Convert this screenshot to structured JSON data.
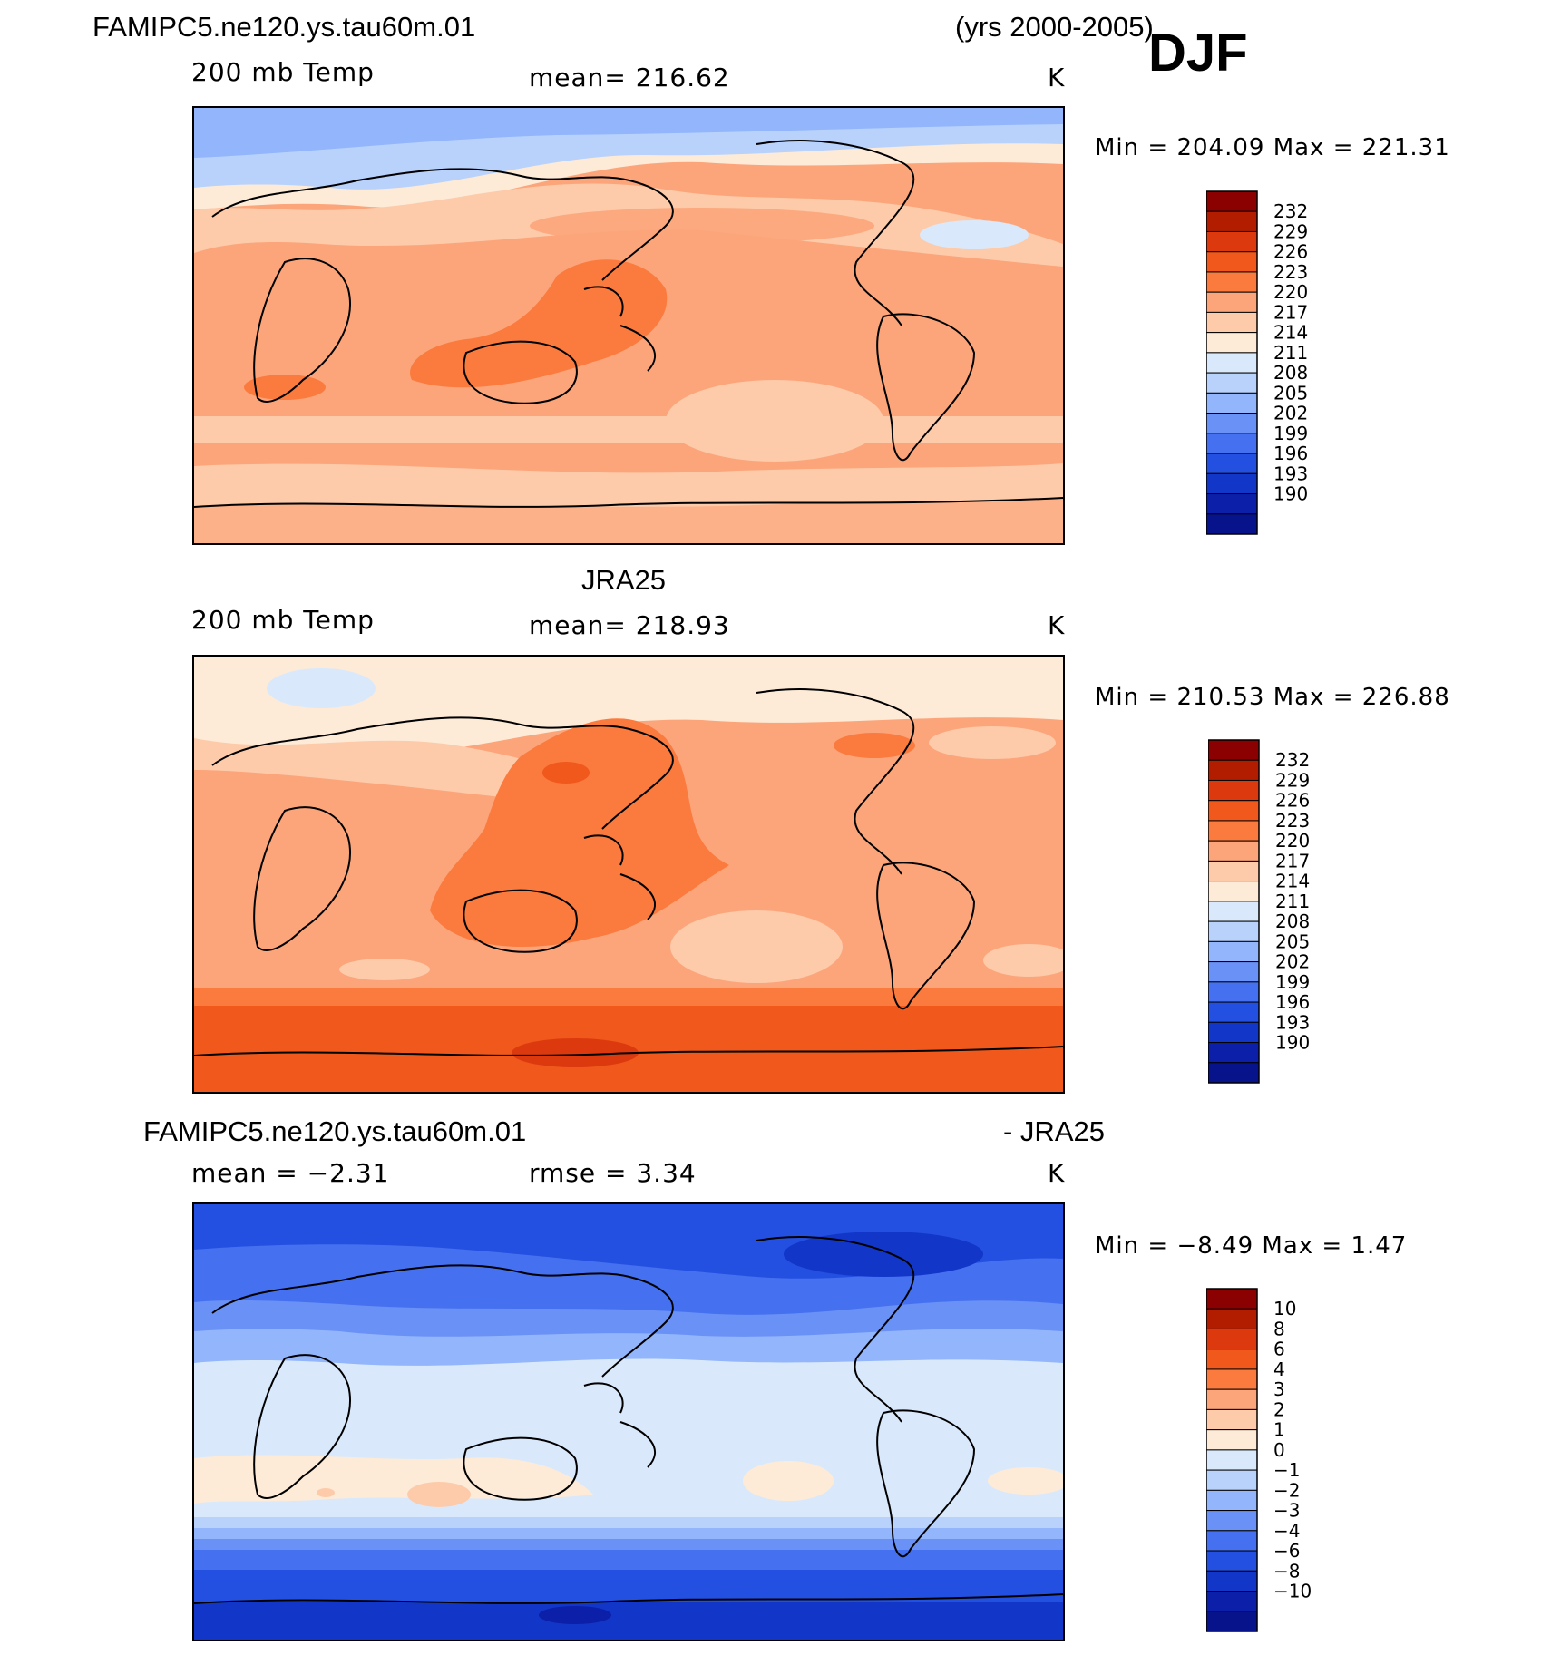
{
  "header": {
    "case_name": "FAMIPC5.ne120.ys.tau60m.01",
    "years": "(yrs 2000-2005)",
    "season": "DJF"
  },
  "chart_data": [
    {
      "type": "heatmap",
      "title": "FAMIPC5.ne120.ys.tau60m.01",
      "variable": "200 mb Temp",
      "mean_text": "mean=  216.62",
      "units": "K",
      "min_max_text": "Min  =  204.09  Max  =  221.31",
      "min": 204.09,
      "max": 221.31,
      "colorbar_levels": [
        "232",
        "229",
        "226",
        "223",
        "220",
        "217",
        "214",
        "211",
        "208",
        "205",
        "202",
        "199",
        "196",
        "193",
        "190"
      ],
      "colorbar_colors": [
        "#8b0000",
        "#b21d00",
        "#dc3a0e",
        "#f0581c",
        "#fb7a3e",
        "#fca57a",
        "#fdcbaa",
        "#fdebd8",
        "#d9e9fb",
        "#b8d2fb",
        "#92b5fb",
        "#6a91f5",
        "#4570ef",
        "#2350e0",
        "#1236c8",
        "#0b1fa8",
        "#06138a"
      ]
    },
    {
      "type": "heatmap",
      "title": "JRA25",
      "variable": "200 mb Temp",
      "mean_text": "mean=  218.93",
      "units": "K",
      "min_max_text": "Min  =  210.53  Max  =  226.88",
      "min": 210.53,
      "max": 226.88,
      "colorbar_levels": [
        "232",
        "229",
        "226",
        "223",
        "220",
        "217",
        "214",
        "211",
        "208",
        "205",
        "202",
        "199",
        "196",
        "193",
        "190"
      ],
      "colorbar_colors": [
        "#8b0000",
        "#b21d00",
        "#dc3a0e",
        "#f0581c",
        "#fb7a3e",
        "#fca57a",
        "#fdcbaa",
        "#fdebd8",
        "#d9e9fb",
        "#b8d2fb",
        "#92b5fb",
        "#6a91f5",
        "#4570ef",
        "#2350e0",
        "#1236c8",
        "#0b1fa8",
        "#06138a"
      ]
    },
    {
      "type": "heatmap",
      "title": "FAMIPC5.ne120.ys.tau60m.01",
      "title_right": "- JRA25",
      "mean_text": "mean  =    −2.31",
      "rmse_text": "rmse  =     3.34",
      "units": "K",
      "min_max_text": "Min  =    −8.49  Max  =      1.47",
      "min": -8.49,
      "max": 1.47,
      "rmse": 3.34,
      "mean": -2.31,
      "colorbar_levels": [
        "10",
        "8",
        "6",
        "4",
        "3",
        "2",
        "1",
        "0",
        "−1",
        "−2",
        "−3",
        "−4",
        "−6",
        "−8",
        "−10"
      ],
      "colorbar_colors": [
        "#8b0000",
        "#b21d00",
        "#dc3a0e",
        "#f0581c",
        "#fb7a3e",
        "#fca57a",
        "#fdcbaa",
        "#fdebd8",
        "#d9e9fb",
        "#b8d2fb",
        "#92b5fb",
        "#6a91f5",
        "#4570ef",
        "#2350e0",
        "#1236c8",
        "#0b1fa8",
        "#06138a"
      ]
    }
  ]
}
